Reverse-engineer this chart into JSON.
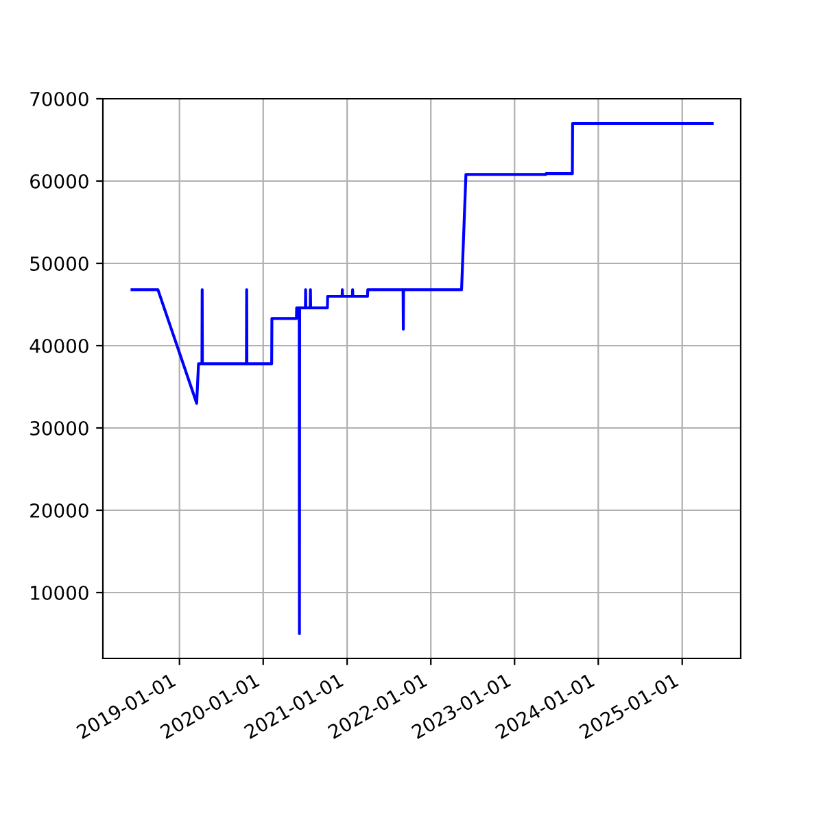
{
  "chart_data": {
    "type": "line",
    "x": [
      "2018-06-08",
      "2018-09-29",
      "2019-03-17",
      "2019-03-25",
      "2019-04-09",
      "2019-04-10",
      "2019-04-11",
      "2019-10-20",
      "2019-10-21",
      "2019-10-22",
      "2020-02-07",
      "2020-02-08",
      "2020-05-25",
      "2020-05-26",
      "2020-06-06",
      "2020-06-07",
      "2020-06-08",
      "2020-07-03",
      "2020-07-04",
      "2020-07-05",
      "2020-07-24",
      "2020-07-25",
      "2020-07-26",
      "2020-10-07",
      "2020-10-08",
      "2020-12-10",
      "2020-12-11",
      "2020-12-12",
      "2021-01-24",
      "2021-01-25",
      "2021-01-26",
      "2021-03-31",
      "2021-04-01",
      "2021-09-02",
      "2021-09-03",
      "2021-09-04",
      "2022-05-15",
      "2022-06-03",
      "2023-05-17",
      "2023-05-18",
      "2023-09-10",
      "2023-09-11",
      "2025-05-12"
    ],
    "series": [
      {
        "color": "#0000ff",
        "values": [
          46800,
          46800,
          33000,
          37800,
          37800,
          46800,
          37800,
          37800,
          46800,
          37800,
          37800,
          43300,
          43300,
          44600,
          44600,
          5000,
          44600,
          44600,
          46800,
          44600,
          44600,
          46800,
          44600,
          44600,
          46000,
          46000,
          46800,
          46000,
          46000,
          46800,
          46000,
          46000,
          46800,
          46800,
          42000,
          46800,
          46800,
          60800,
          60800,
          60900,
          60900,
          67000,
          67000
        ]
      }
    ],
    "xlim": [
      "2018-02-01",
      "2025-09-13"
    ],
    "xticks": [
      "2019-01-01",
      "2020-01-01",
      "2021-01-01",
      "2022-01-01",
      "2023-01-01",
      "2024-01-01",
      "2025-01-01"
    ],
    "ylim": [
      2000,
      70000
    ],
    "yticks": [
      10000,
      20000,
      30000,
      40000,
      50000,
      60000,
      70000
    ],
    "grid": true,
    "line_style": "solid",
    "marker": "none"
  }
}
